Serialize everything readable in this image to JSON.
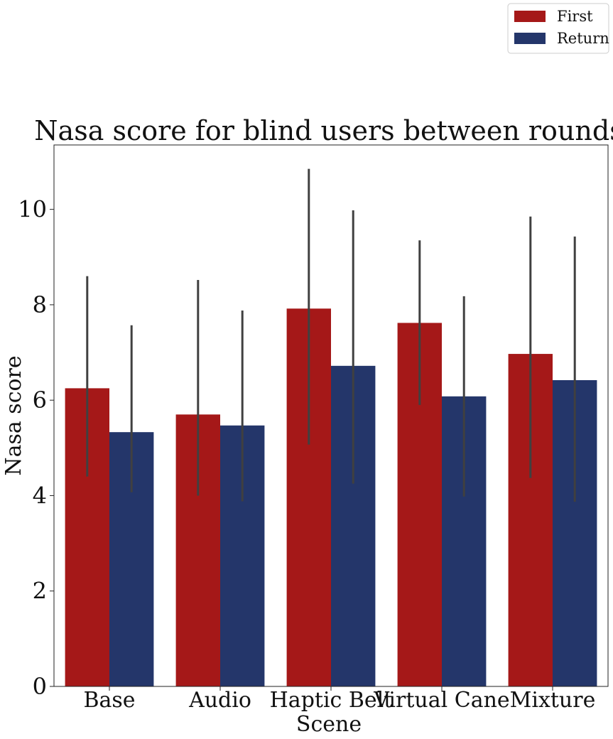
{
  "chart_data": {
    "type": "bar",
    "title": "Nasa score for blind users between rounds",
    "xlabel": "Scene",
    "ylabel": "Nasa score",
    "ylim": [
      0,
      11.35
    ],
    "yticks": [
      0,
      2,
      4,
      6,
      8,
      10
    ],
    "categories": [
      "Base",
      "Audio",
      "Haptic Belt",
      "Virtual Cane",
      "Mixture"
    ],
    "series": [
      {
        "name": "First",
        "color": "#a51818",
        "values": [
          6.25,
          5.7,
          7.92,
          7.62,
          6.97
        ],
        "err_low": [
          4.4,
          4.0,
          5.07,
          5.9,
          4.37
        ],
        "err_high": [
          8.6,
          8.52,
          10.85,
          9.35,
          9.85
        ]
      },
      {
        "name": "Return",
        "color": "#24366a",
        "values": [
          5.33,
          5.47,
          6.72,
          6.08,
          6.42
        ],
        "err_low": [
          4.07,
          3.88,
          4.25,
          3.98,
          3.87
        ],
        "err_high": [
          7.57,
          7.88,
          9.98,
          8.18,
          9.43
        ]
      }
    ],
    "grid": false,
    "legend": "top-right, outside plot area"
  }
}
